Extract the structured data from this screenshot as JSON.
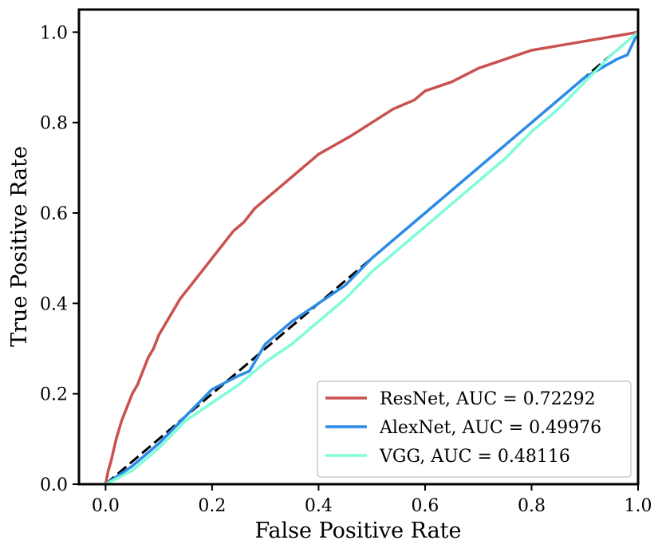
{
  "chart_data": {
    "type": "line",
    "title": "",
    "xlabel": "False Positive Rate",
    "ylabel": "True Positive Rate",
    "xlim": [
      -0.05,
      1.0
    ],
    "ylim": [
      0.0,
      1.05
    ],
    "xticks": [
      "0.0",
      "0.2",
      "0.4",
      "0.6",
      "0.8",
      "1.0"
    ],
    "yticks": [
      "0.0",
      "0.2",
      "0.4",
      "0.6",
      "0.8",
      "1.0"
    ],
    "grid": false,
    "legend_position": "lower-right",
    "reference_line": {
      "name": "chance",
      "x": [
        0,
        1
      ],
      "y": [
        0,
        1
      ],
      "color": "#000000",
      "style": "dashed"
    },
    "series": [
      {
        "name": "ResNet",
        "legend": "ResNet, AUC = 0.72292",
        "color": "#c9514f",
        "x": [
          0.0,
          0.005,
          0.01,
          0.02,
          0.03,
          0.04,
          0.05,
          0.06,
          0.07,
          0.08,
          0.09,
          0.1,
          0.12,
          0.14,
          0.16,
          0.18,
          0.2,
          0.22,
          0.24,
          0.26,
          0.28,
          0.3,
          0.32,
          0.34,
          0.36,
          0.38,
          0.4,
          0.43,
          0.46,
          0.5,
          0.54,
          0.58,
          0.6,
          0.65,
          0.7,
          0.75,
          0.8,
          0.85,
          0.9,
          0.95,
          1.0
        ],
        "y": [
          0.0,
          0.03,
          0.05,
          0.1,
          0.14,
          0.17,
          0.2,
          0.22,
          0.25,
          0.28,
          0.3,
          0.33,
          0.37,
          0.41,
          0.44,
          0.47,
          0.5,
          0.53,
          0.56,
          0.58,
          0.61,
          0.63,
          0.65,
          0.67,
          0.69,
          0.71,
          0.73,
          0.75,
          0.77,
          0.8,
          0.83,
          0.85,
          0.87,
          0.89,
          0.92,
          0.94,
          0.96,
          0.97,
          0.98,
          0.99,
          1.0
        ]
      },
      {
        "name": "AlexNet",
        "legend": "AlexNet, AUC = 0.49976",
        "color": "#2b8be6",
        "x": [
          0.0,
          0.05,
          0.1,
          0.15,
          0.2,
          0.25,
          0.27,
          0.3,
          0.35,
          0.4,
          0.45,
          0.5,
          0.55,
          0.6,
          0.65,
          0.7,
          0.75,
          0.8,
          0.85,
          0.9,
          0.93,
          0.96,
          0.98,
          1.0
        ],
        "y": [
          0.0,
          0.04,
          0.09,
          0.15,
          0.21,
          0.24,
          0.25,
          0.31,
          0.36,
          0.4,
          0.44,
          0.5,
          0.55,
          0.6,
          0.65,
          0.7,
          0.75,
          0.8,
          0.85,
          0.9,
          0.92,
          0.94,
          0.95,
          1.0
        ]
      },
      {
        "name": "VGG",
        "legend": "VGG, AUC = 0.48116",
        "color": "#7ffcd9",
        "x": [
          0.0,
          0.05,
          0.1,
          0.15,
          0.2,
          0.25,
          0.3,
          0.35,
          0.4,
          0.45,
          0.5,
          0.55,
          0.6,
          0.65,
          0.7,
          0.75,
          0.8,
          0.85,
          0.9,
          0.95,
          1.0
        ],
        "y": [
          0.0,
          0.03,
          0.08,
          0.14,
          0.18,
          0.22,
          0.27,
          0.31,
          0.36,
          0.41,
          0.47,
          0.52,
          0.57,
          0.62,
          0.67,
          0.72,
          0.78,
          0.83,
          0.89,
          0.95,
          1.0
        ]
      }
    ]
  }
}
